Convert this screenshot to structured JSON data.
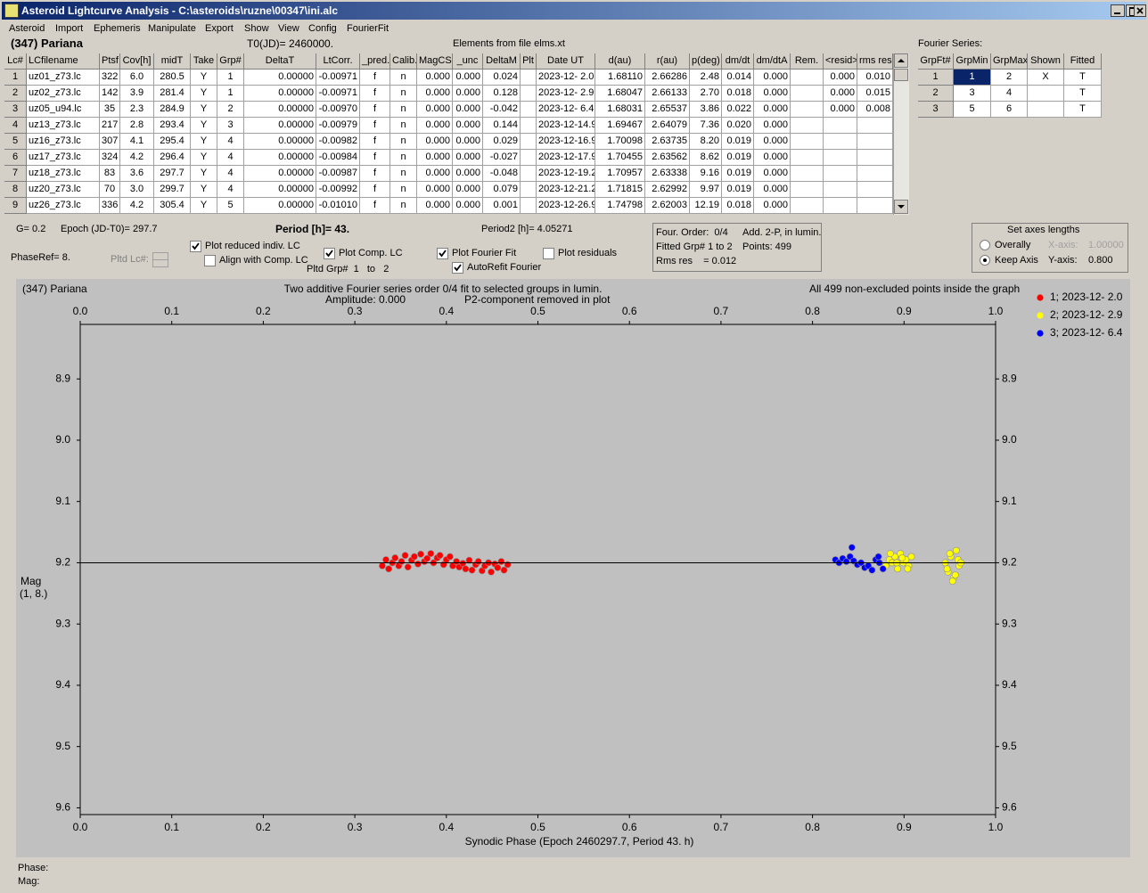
{
  "window": {
    "title": "Asteroid Lightcurve Analysis - C:\\asteroids\\ruzne\\00347\\ini.alc"
  },
  "menu": [
    "Asteroid",
    "Import",
    "Ephemeris",
    "Manipulate",
    "Export",
    "Show",
    "View",
    "Config",
    "FourierFit"
  ],
  "header": {
    "asteroid": "(347) Pariana",
    "t0": "T0(JD)= 2460000.",
    "elements": "Elements from file elms.xt",
    "fourier_label": "Fourier Series:"
  },
  "table": {
    "columns": [
      "Lc#",
      "LCfilename",
      "Ptsf",
      "Cov[h]",
      "midT",
      "Take",
      "Grp#",
      "DeltaT",
      "LtCorr.",
      "_pred.",
      "Calib.",
      "MagCS",
      "_unc",
      "DeltaM",
      "Plt",
      "Date UT",
      "d(au)",
      "r(au)",
      "p(deg)",
      "dm/dt",
      "dm/dtA",
      "Rem.",
      "<resid>",
      "rms res"
    ],
    "rows": [
      [
        "1",
        "uz01_z73.lc",
        "322",
        "6.0",
        "280.5",
        "Y",
        "1",
        "0.00000",
        "-0.00971",
        "f",
        "n",
        "0.000",
        "0.000",
        "0.024",
        null,
        "2023-12- 2.0",
        "1.68110",
        "2.66286",
        "2.48",
        "0.014",
        "0.000",
        null,
        "0.000",
        "0.010"
      ],
      [
        "2",
        "uz02_z73.lc",
        "142",
        "3.9",
        "281.4",
        "Y",
        "1",
        "0.00000",
        "-0.00971",
        "f",
        "n",
        "0.000",
        "0.000",
        "0.128",
        null,
        "2023-12- 2.9",
        "1.68047",
        "2.66133",
        "2.70",
        "0.018",
        "0.000",
        null,
        "0.000",
        "0.015"
      ],
      [
        "3",
        "uz05_u94.lc",
        "35",
        "2.3",
        "284.9",
        "Y",
        "2",
        "0.00000",
        "-0.00970",
        "f",
        "n",
        "0.000",
        "0.000",
        "-0.042",
        null,
        "2023-12- 6.4",
        "1.68031",
        "2.65537",
        "3.86",
        "0.022",
        "0.000",
        null,
        "0.000",
        "0.008"
      ],
      [
        "4",
        "uz13_z73.lc",
        "217",
        "2.8",
        "293.4",
        "Y",
        "3",
        "0.00000",
        "-0.00979",
        "f",
        "n",
        "0.000",
        "0.000",
        "0.144",
        null,
        "2023-12-14.9",
        "1.69467",
        "2.64079",
        "7.36",
        "0.020",
        "0.000",
        null,
        null,
        null
      ],
      [
        "5",
        "uz16_z73.lc",
        "307",
        "4.1",
        "295.4",
        "Y",
        "4",
        "0.00000",
        "-0.00982",
        "f",
        "n",
        "0.000",
        "0.000",
        "0.029",
        null,
        "2023-12-16.9",
        "1.70098",
        "2.63735",
        "8.20",
        "0.019",
        "0.000",
        null,
        null,
        null
      ],
      [
        "6",
        "uz17_z73.lc",
        "324",
        "4.2",
        "296.4",
        "Y",
        "4",
        "0.00000",
        "-0.00984",
        "f",
        "n",
        "0.000",
        "0.000",
        "-0.027",
        null,
        "2023-12-17.9",
        "1.70455",
        "2.63562",
        "8.62",
        "0.019",
        "0.000",
        null,
        null,
        null
      ],
      [
        "7",
        "uz18_z73.lc",
        "83",
        "3.6",
        "297.7",
        "Y",
        "4",
        "0.00000",
        "-0.00987",
        "f",
        "n",
        "0.000",
        "0.000",
        "-0.048",
        null,
        "2023-12-19.2",
        "1.70957",
        "2.63338",
        "9.16",
        "0.019",
        "0.000",
        null,
        null,
        null
      ],
      [
        "8",
        "uz20_z73.lc",
        "70",
        "3.0",
        "299.7",
        "Y",
        "4",
        "0.00000",
        "-0.00992",
        "f",
        "n",
        "0.000",
        "0.000",
        "0.079",
        null,
        "2023-12-21.2",
        "1.71815",
        "2.62992",
        "9.97",
        "0.019",
        "0.000",
        null,
        null,
        null
      ],
      [
        "9",
        "uz26_z73.lc",
        "336",
        "4.2",
        "305.4",
        "Y",
        "5",
        "0.00000",
        "-0.01010",
        "f",
        "n",
        "0.000",
        "0.000",
        "0.001",
        null,
        "2023-12-26.9",
        "1.74798",
        "2.62003",
        "12.19",
        "0.018",
        "0.000",
        null,
        null,
        null
      ]
    ]
  },
  "fourier_table": {
    "columns": [
      "GrpFt#",
      "GrpMin",
      "GrpMax",
      "Shown",
      "Fitted"
    ],
    "rows": [
      [
        "1",
        "1",
        "2",
        "X",
        "T"
      ],
      [
        "2",
        "3",
        "4",
        null,
        "T"
      ],
      [
        "3",
        "5",
        "6",
        null,
        "T"
      ]
    ]
  },
  "controls": {
    "g": "G= 0.2",
    "epoch": "Epoch (JD-T0)= 297.7",
    "period": "Period [h]= 43.",
    "period2": "Period2 [h]= 4.05271",
    "phaseref": "PhaseRef= 8.",
    "pltd_lc": "Pltd Lc#:",
    "pltd_grp": "Pltd Grp#  1   to   2",
    "checkboxes": [
      {
        "label": "Plot reduced indiv. LC",
        "checked": true
      },
      {
        "label": "Align with Comp. LC",
        "checked": false
      },
      {
        "label": "Plot Comp. LC",
        "checked": true
      },
      {
        "label": "Plot Fourier Fit",
        "checked": true
      },
      {
        "label": "AutoRefit Fourier",
        "checked": true
      },
      {
        "label": "Plot residuals",
        "checked": false
      }
    ]
  },
  "info": [
    "Four. Order:  0/4",
    "Add. 2-P, in lumin.",
    "Fitted Grp# 1 to 2",
    "Points: 499",
    "Rms res    = 0.012"
  ],
  "axes_box": {
    "title": "Set axes lengths",
    "radios": [
      {
        "label": "Overally",
        "checked": false
      },
      {
        "label": "Keep Axis",
        "checked": true
      }
    ],
    "x_label": "X-axis:",
    "x_value": "1.00000",
    "y_label": "Y-axis:",
    "y_value": "0.800"
  },
  "chart_data": {
    "type": "scatter",
    "object": "(347) Pariana",
    "title": "Two additive Fourier series order 0/4 fit to selected groups in lumin.",
    "amplitude": "Amplitude: 0.000",
    "p2_note": "P2-component removed in plot",
    "note": "All 499 non-excluded points inside the graph",
    "xlabel": "Synodic Phase (Epoch 2460297.7, Period 43. h)",
    "ylabel": "Mag",
    "ylabel2": "(1, 8.)",
    "xlim": [
      0,
      1
    ],
    "ylim": [
      8.811,
      9.611
    ],
    "y_inverted": true,
    "xticks": [
      {
        "value": 0,
        "label": "0.0"
      },
      0.1,
      0.2,
      0.3,
      0.4,
      0.5,
      0.6,
      0.7,
      0.8,
      0.9,
      {
        "value": 1,
        "label": "1.0"
      }
    ],
    "yticks": [
      8.9,
      {
        "value": 9,
        "label": "9.0"
      },
      9.1,
      9.2,
      9.3,
      9.4,
      9.5,
      9.6
    ],
    "fit_value": 9.2,
    "series": [
      {
        "name": "1; 2023-12- 2.0",
        "color": "#ff0000",
        "x": [
          0.33,
          0.334,
          0.337,
          0.341,
          0.344,
          0.348,
          0.351,
          0.355,
          0.358,
          0.362,
          0.365,
          0.369,
          0.372,
          0.376,
          0.379,
          0.383,
          0.386,
          0.39,
          0.393,
          0.397,
          0.4,
          0.404,
          0.407,
          0.411,
          0.414,
          0.418,
          0.421,
          0.425,
          0.428,
          0.432,
          0.435,
          0.439,
          0.442,
          0.446,
          0.449,
          0.453,
          0.456,
          0.46,
          0.463,
          0.467
        ],
        "values": [
          9.205,
          9.195,
          9.21,
          9.2,
          9.192,
          9.205,
          9.198,
          9.188,
          9.207,
          9.196,
          9.19,
          9.202,
          9.186,
          9.198,
          9.193,
          9.185,
          9.2,
          9.192,
          9.188,
          9.203,
          9.195,
          9.19,
          9.205,
          9.198,
          9.207,
          9.201,
          9.21,
          9.196,
          9.212,
          9.203,
          9.198,
          9.213,
          9.205,
          9.2,
          9.215,
          9.202,
          9.208,
          9.198,
          9.212,
          9.203
        ]
      },
      {
        "name": "2; 2023-12- 2.9",
        "color": "#ffff00",
        "x": [
          0.88,
          0.884,
          0.887,
          0.89,
          0.893,
          0.896,
          0.899,
          0.902,
          0.905,
          0.908,
          0.885,
          0.892,
          0.898,
          0.904,
          0.945,
          0.948,
          0.951,
          0.954,
          0.957,
          0.96,
          0.947,
          0.953,
          0.959,
          0.95,
          0.956,
          0.962
        ],
        "values": [
          9.205,
          9.195,
          9.2,
          9.19,
          9.21,
          9.185,
          9.2,
          9.195,
          9.205,
          9.19,
          9.185,
          9.2,
          9.192,
          9.21,
          9.2,
          9.215,
          9.19,
          9.225,
          9.18,
          9.205,
          9.21,
          9.23,
          9.195,
          9.185,
          9.22,
          9.2
        ]
      },
      {
        "name": "3; 2023-12- 6.4",
        "color": "#0000ff",
        "x": [
          0.825,
          0.829,
          0.833,
          0.837,
          0.841,
          0.845,
          0.849,
          0.853,
          0.857,
          0.861,
          0.865,
          0.869,
          0.873,
          0.877,
          0.843,
          0.872
        ],
        "values": [
          9.195,
          9.2,
          9.193,
          9.198,
          9.19,
          9.197,
          9.203,
          9.2,
          9.208,
          9.205,
          9.212,
          9.195,
          9.2,
          9.21,
          9.175,
          9.19
        ]
      }
    ]
  },
  "status": [
    "Phase:",
    "Mag:"
  ]
}
